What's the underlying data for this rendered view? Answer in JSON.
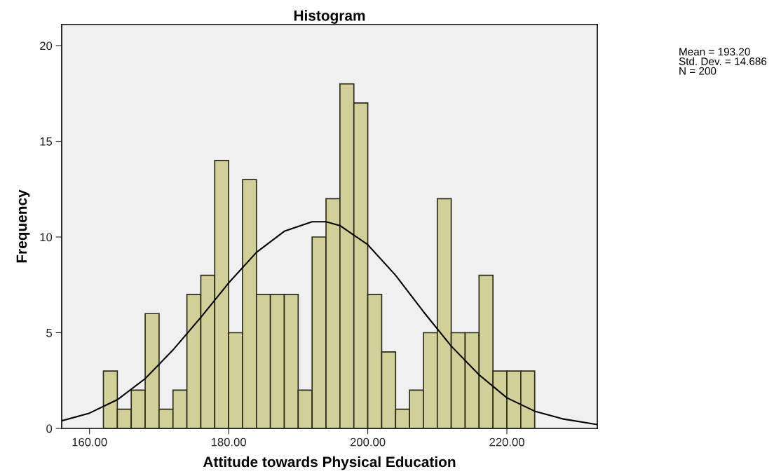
{
  "chart_data": {
    "type": "histogram",
    "title": "Histogram",
    "xlabel": "Attitude towards Physical Education",
    "ylabel": "Frequency",
    "bins": [
      162,
      164,
      166,
      168,
      170,
      172,
      174,
      176,
      178,
      180,
      182,
      184,
      186,
      188,
      190,
      192,
      194,
      196,
      198,
      200,
      202,
      204,
      206,
      208,
      210,
      212,
      214,
      216,
      218,
      220,
      222,
      224
    ],
    "values": [
      3,
      1,
      2,
      6,
      1,
      2,
      7,
      8,
      14,
      5,
      13,
      7,
      7,
      7,
      2,
      10,
      12,
      18,
      17,
      7,
      4,
      1,
      2,
      5,
      12,
      5,
      5,
      8,
      3,
      3,
      3
    ],
    "color": "#d3cf98",
    "series": [
      {
        "type": "line",
        "color": "#000000",
        "x": [
          156,
          160,
          164,
          168,
          172,
          176,
          180,
          184,
          188,
          192,
          194,
          196,
          200,
          204,
          208,
          212,
          216,
          220,
          224,
          228,
          233
        ],
        "values": [
          0.4,
          0.8,
          1.5,
          2.6,
          4.1,
          5.8,
          7.6,
          9.2,
          10.3,
          10.8,
          10.8,
          10.6,
          9.6,
          8.0,
          6.1,
          4.3,
          2.8,
          1.6,
          0.9,
          0.5,
          0.2
        ]
      }
    ],
    "xlim": [
      156,
      233
    ],
    "xticks": [
      {
        "value": 160,
        "label": "160.00"
      },
      {
        "value": 180,
        "label": "180.00"
      },
      {
        "value": 200,
        "label": "200.00"
      },
      {
        "value": 220,
        "label": "220.00"
      }
    ],
    "ylim": [
      0,
      21.1
    ],
    "yticks": [
      0,
      5,
      10,
      15,
      20
    ],
    "grid": false,
    "legend": false,
    "annotations": [
      "Mean = 193.20\nStd. Dev. = 14.686\nN = 200"
    ]
  }
}
